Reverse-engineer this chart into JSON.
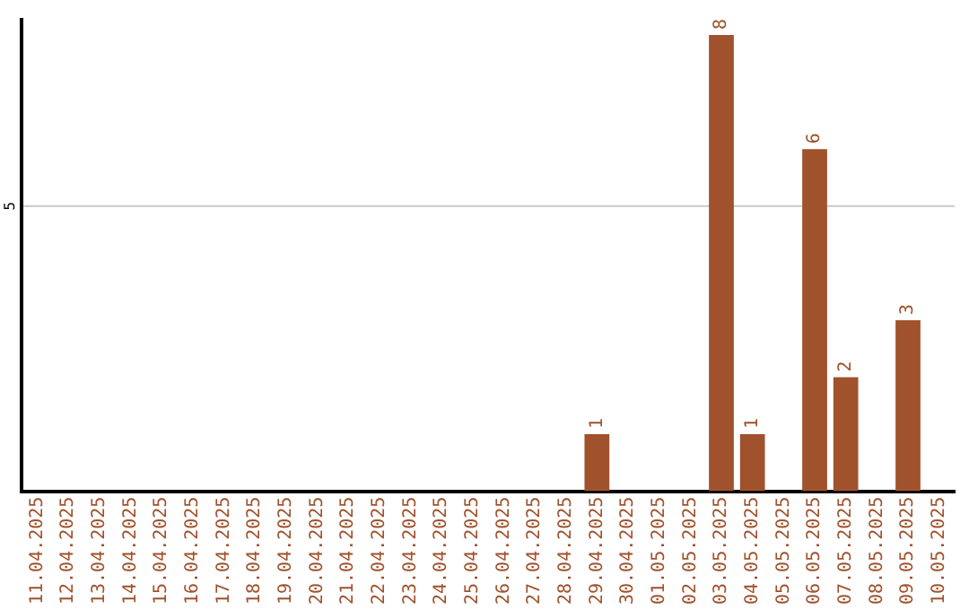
{
  "chart_data": {
    "type": "bar",
    "categories": [
      "11.04.2025",
      "12.04.2025",
      "13.04.2025",
      "14.04.2025",
      "15.04.2025",
      "16.04.2025",
      "17.04.2025",
      "18.04.2025",
      "19.04.2025",
      "20.04.2025",
      "21.04.2025",
      "22.04.2025",
      "23.04.2025",
      "24.04.2025",
      "25.04.2025",
      "26.04.2025",
      "27.04.2025",
      "28.04.2025",
      "29.04.2025",
      "30.04.2025",
      "01.05.2025",
      "02.05.2025",
      "03.05.2025",
      "04.05.2025",
      "05.05.2025",
      "06.05.2025",
      "07.05.2025",
      "08.05.2025",
      "09.05.2025",
      "10.05.2025"
    ],
    "values": [
      null,
      null,
      null,
      null,
      null,
      null,
      null,
      null,
      null,
      null,
      null,
      null,
      null,
      null,
      null,
      null,
      null,
      null,
      1,
      null,
      null,
      null,
      8,
      1,
      null,
      6,
      2,
      null,
      3,
      null
    ],
    "data_labels": true,
    "color": "#a0522d",
    "ylim": [
      0,
      8.3
    ],
    "ref_lines": [
      {
        "axis": "y",
        "value": 5,
        "label": "5",
        "color": "#c8c8c8"
      }
    ],
    "legend": false
  }
}
